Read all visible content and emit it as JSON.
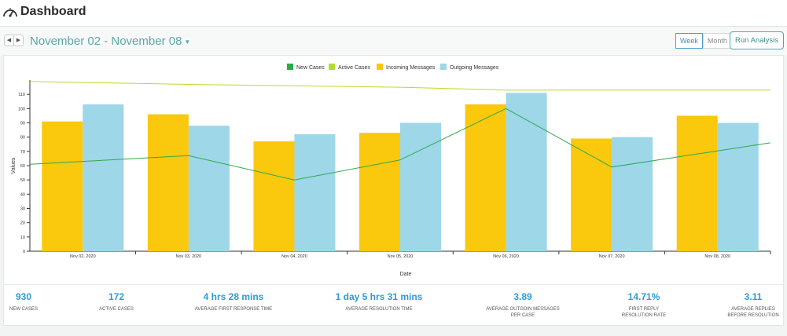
{
  "header": {
    "title": "Dashboard"
  },
  "toolbar": {
    "prev_label": "◀",
    "next_label": "▶",
    "date_range": "November 02 - November 08",
    "week_label": "Week",
    "month_label": "Month",
    "run_label": "Run Analysis"
  },
  "chart_data": {
    "type": "bar",
    "xlabel": "Date",
    "ylabel": "Values",
    "ylim": [
      0,
      120
    ],
    "yticks": [
      0,
      10,
      20,
      30,
      40,
      50,
      60,
      70,
      80,
      90,
      100,
      110
    ],
    "categories": [
      "Nov 02, 2020",
      "Nov 03, 2020",
      "Nov 04, 2020",
      "Nov 05, 2020",
      "Nov 06, 2020",
      "Nov 07, 2020",
      "Nov 08, 2020"
    ],
    "legend_position": "top-center",
    "grid": false,
    "series": [
      {
        "name": "New Cases",
        "kind": "line",
        "color": "#2eaa4a",
        "values": [
          61,
          67,
          50,
          64,
          100,
          59,
          76
        ]
      },
      {
        "name": "Active Cases",
        "kind": "line",
        "color": "#b5dc2c",
        "values": [
          119,
          117,
          116,
          115,
          113,
          113,
          113
        ]
      },
      {
        "name": "Incoming Messages",
        "kind": "bar",
        "color": "#fac80c",
        "values": [
          91,
          96,
          77,
          83,
          103,
          79,
          95
        ]
      },
      {
        "name": "Outgoing Messages",
        "kind": "bar",
        "color": "#9dd7e8",
        "values": [
          103,
          88,
          82,
          90,
          111,
          80,
          90
        ]
      }
    ]
  },
  "stats": [
    {
      "value": "930",
      "label": "NEW CASES"
    },
    {
      "value": "172",
      "label": "ACTIVE CASES"
    },
    {
      "value": "4 hrs 28 mins",
      "label": "AVERAGE FIRST RESPONSE TIME"
    },
    {
      "value": "1 day 5 hrs 31 mins",
      "label": "AVERAGE RESOLUTION TIME"
    },
    {
      "value": "3.89",
      "label": "AVERAGE OUTGOIN MESSAGES\nPER CASE"
    },
    {
      "value": "14.71%",
      "label": "FIRST REPLY\nRESOLUTION RATE"
    },
    {
      "value": "3.11",
      "label": "AVERAGE REPLIES\nBEFORE RESOLUTION"
    }
  ]
}
